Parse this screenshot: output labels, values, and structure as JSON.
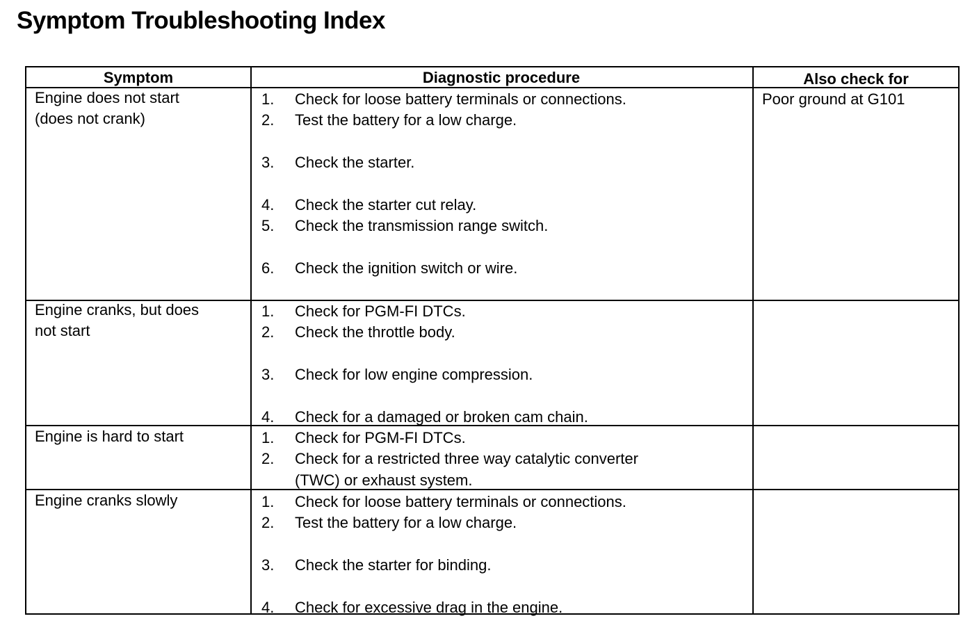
{
  "title": "Symptom Troubleshooting Index",
  "headers": {
    "symptom": "Symptom",
    "procedure": "Diagnostic procedure",
    "also": "Also check for"
  },
  "rows": [
    {
      "symptom": [
        "Engine does not start",
        "(does not crank)"
      ],
      "also": "Poor ground at G101",
      "steps": [
        {
          "n": "1.",
          "t": "Check for loose battery terminals or connections."
        },
        {
          "n": "2.",
          "t": "Test the battery for a low charge."
        },
        {
          "n": "3.",
          "t": "Check the starter."
        },
        {
          "n": "4.",
          "t": "Check the starter cut relay."
        },
        {
          "n": "5.",
          "t": "Check the transmission range switch."
        },
        {
          "n": "6.",
          "t": "Check the ignition switch or wire."
        }
      ]
    },
    {
      "symptom": [
        "Engine cranks, but does",
        "not start"
      ],
      "also": "",
      "steps": [
        {
          "n": "1.",
          "t": "Check for PGM-FI DTCs."
        },
        {
          "n": "2.",
          "t": "Check the throttle body."
        },
        {
          "n": "3.",
          "t": "Check for low engine compression."
        },
        {
          "n": "4.",
          "t": "Check for a damaged or broken cam chain."
        }
      ]
    },
    {
      "symptom": [
        "Engine is hard to start"
      ],
      "also": "",
      "steps": [
        {
          "n": "1.",
          "t": "Check for PGM-FI DTCs."
        },
        {
          "n": "2.",
          "t": "Check for a restricted three way catalytic converter"
        },
        {
          "n": "",
          "t": "(TWC) or exhaust system."
        }
      ]
    },
    {
      "symptom": [
        "Engine cranks slowly"
      ],
      "also": "",
      "steps": [
        {
          "n": "1.",
          "t": "Check for loose battery terminals or connections."
        },
        {
          "n": "2.",
          "t": "Test the battery for a low charge."
        },
        {
          "n": "3.",
          "t": "Check the starter for binding."
        },
        {
          "n": "4.",
          "t": "Check for excessive drag in the engine."
        }
      ]
    }
  ]
}
